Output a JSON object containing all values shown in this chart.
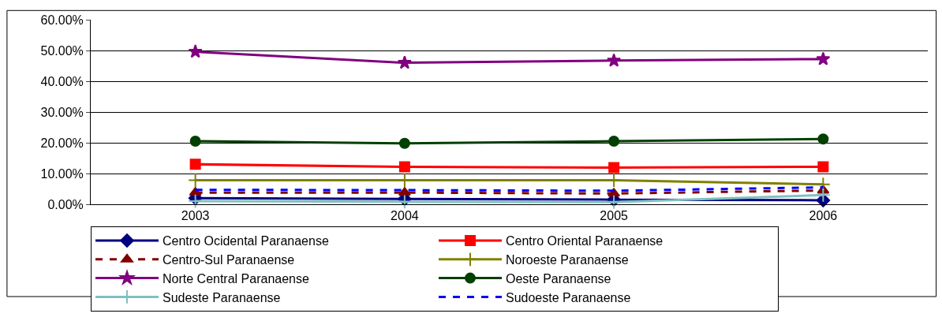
{
  "chart_data": {
    "type": "line",
    "categories": [
      "2003",
      "2004",
      "2005",
      "2006"
    ],
    "series": [
      {
        "name": "Centro Ocidental Paranaense",
        "color": "#000080",
        "marker": "diamond",
        "line_style": "solid",
        "values": [
          2.0,
          1.7,
          1.5,
          1.3
        ]
      },
      {
        "name": "Centro Oriental Paranaense",
        "color": "#ff0000",
        "marker": "square",
        "line_style": "solid",
        "values": [
          13.0,
          12.2,
          11.9,
          12.2
        ]
      },
      {
        "name": "Centro-Sul Paranaense",
        "color": "#800000",
        "marker": "triangle",
        "line_style": "dashed",
        "values": [
          3.8,
          3.8,
          3.5,
          4.5
        ]
      },
      {
        "name": "Noroeste Paranaense",
        "color": "#808000",
        "marker": "cross",
        "line_style": "solid",
        "values": [
          7.8,
          7.8,
          7.8,
          6.5
        ]
      },
      {
        "name": "Norte Central Paranaense",
        "color": "#800080",
        "marker": "star",
        "line_style": "solid",
        "values": [
          49.6,
          46.0,
          46.7,
          47.2
        ]
      },
      {
        "name": "Oeste Paranaense",
        "color": "#004000",
        "marker": "circle",
        "line_style": "solid",
        "values": [
          20.5,
          19.8,
          20.5,
          21.2
        ]
      },
      {
        "name": "Sudeste Paranaense",
        "color": "#80c0c0",
        "marker": "cross",
        "line_style": "solid",
        "values": [
          1.0,
          0.8,
          0.7,
          3.0
        ]
      },
      {
        "name": "Sudoeste Paranaense",
        "color": "#0000ff",
        "marker": "none",
        "line_style": "dashed",
        "values": [
          4.7,
          4.6,
          4.4,
          5.5
        ]
      }
    ],
    "ylim": [
      0,
      60
    ],
    "yticks": [
      {
        "value": 0,
        "label": "0.00%"
      },
      {
        "value": 10,
        "label": "10.00%"
      },
      {
        "value": 20,
        "label": "20.00%"
      },
      {
        "value": 30,
        "label": "30.00%"
      },
      {
        "value": 40,
        "label": "40.00%"
      },
      {
        "value": 50,
        "label": "50.00%"
      },
      {
        "value": 60,
        "label": "60.00%"
      }
    ],
    "grid": "y",
    "legend": "bottom"
  }
}
